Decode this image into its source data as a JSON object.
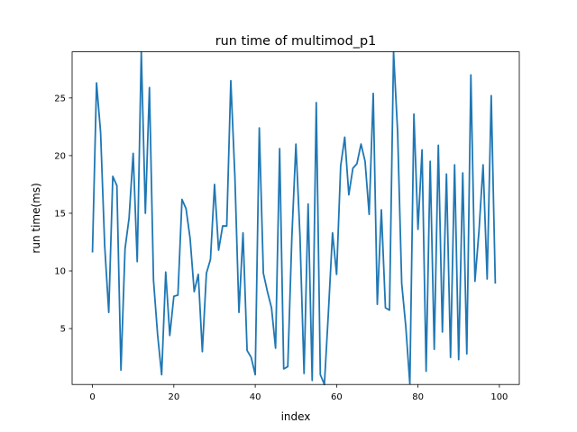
{
  "chart_data": {
    "type": "line",
    "title": "run time of multimod_p1",
    "xlabel": "index",
    "ylabel": "run time(ms)",
    "xlim": [
      -5,
      104.9
    ],
    "ylim": [
      0.15,
      29
    ],
    "xticks": [
      0,
      20,
      40,
      60,
      80,
      100
    ],
    "yticks": [
      5,
      10,
      15,
      20,
      25
    ],
    "grid": false,
    "line_color": "#1f77b4",
    "series": [
      {
        "x": [
          0,
          1,
          2,
          3,
          4,
          5,
          6,
          7,
          8,
          9,
          10,
          11,
          12,
          13,
          14,
          15,
          16,
          17,
          18,
          19,
          20,
          21,
          22,
          23,
          24,
          25,
          26,
          27,
          28,
          29,
          30,
          31,
          32,
          33,
          34,
          35,
          36,
          37,
          38,
          39,
          40,
          41,
          42,
          43,
          44,
          45,
          46,
          47,
          48,
          49,
          50,
          51,
          52,
          53,
          54,
          55,
          56,
          57,
          58,
          59,
          60,
          61,
          62,
          63,
          64,
          65,
          66,
          67,
          68,
          69,
          70,
          71,
          72,
          73,
          74,
          75,
          76,
          77,
          78,
          79,
          80,
          81,
          82,
          83,
          84,
          85,
          86,
          87,
          88,
          89,
          90,
          91,
          92,
          93,
          94,
          95,
          96,
          97,
          98,
          99
        ],
        "values": [
          11.6,
          26.3,
          22.0,
          12.2,
          6.4,
          18.2,
          17.4,
          1.4,
          11.9,
          14.6,
          20.2,
          10.8,
          29.0,
          15.0,
          25.9,
          9.2,
          4.5,
          1.0,
          9.9,
          4.4,
          7.8,
          7.9,
          16.2,
          15.4,
          12.8,
          8.2,
          9.7,
          3.0,
          9.8,
          11.0,
          17.5,
          11.8,
          13.9,
          13.9,
          26.5,
          18.2,
          6.4,
          13.3,
          3.1,
          2.5,
          1.0,
          22.4,
          9.8,
          8.2,
          6.8,
          3.3,
          20.6,
          1.5,
          1.7,
          12.9,
          21.0,
          13.0,
          1.1,
          15.8,
          0.5,
          24.6,
          1.0,
          0.15,
          6.5,
          13.3,
          9.7,
          19.1,
          21.6,
          16.6,
          18.9,
          19.3,
          21.0,
          19.5,
          14.9,
          25.4,
          7.1,
          15.3,
          6.8,
          6.6,
          29.0,
          22.0,
          8.9,
          5.2,
          0.2,
          23.6,
          13.6,
          20.5,
          1.3,
          19.5,
          3.2,
          20.9,
          4.7,
          18.4,
          2.5,
          19.2,
          2.3,
          18.5,
          2.8,
          27.0,
          9.1,
          13.5,
          19.2,
          9.3,
          25.2,
          8.9
        ]
      }
    ]
  }
}
